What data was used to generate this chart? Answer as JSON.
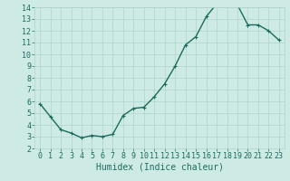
{
  "x": [
    0,
    1,
    2,
    3,
    4,
    5,
    6,
    7,
    8,
    9,
    10,
    11,
    12,
    13,
    14,
    15,
    16,
    17,
    18,
    19,
    20,
    21,
    22,
    23
  ],
  "y": [
    5.8,
    4.7,
    3.6,
    3.3,
    2.9,
    3.1,
    3.0,
    3.2,
    4.8,
    5.4,
    5.5,
    6.4,
    7.5,
    9.0,
    10.8,
    11.5,
    13.2,
    14.3,
    14.3,
    14.2,
    12.5,
    12.5,
    12.0,
    11.2
  ],
  "line_color": "#1a6b5e",
  "marker": "+",
  "marker_size": 3,
  "bg_color": "#ceeae4",
  "grid_color": "#aed4ce",
  "xlabel": "Humidex (Indice chaleur)",
  "ylim": [
    2,
    14
  ],
  "xlim": [
    -0.5,
    23.5
  ],
  "yticks": [
    2,
    3,
    4,
    5,
    6,
    7,
    8,
    9,
    10,
    11,
    12,
    13,
    14
  ],
  "xticks": [
    0,
    1,
    2,
    3,
    4,
    5,
    6,
    7,
    8,
    9,
    10,
    11,
    12,
    13,
    14,
    15,
    16,
    17,
    18,
    19,
    20,
    21,
    22,
    23
  ],
  "font_color": "#1a6b5e",
  "tick_fontsize": 6,
  "xlabel_fontsize": 7,
  "linewidth": 1.0
}
